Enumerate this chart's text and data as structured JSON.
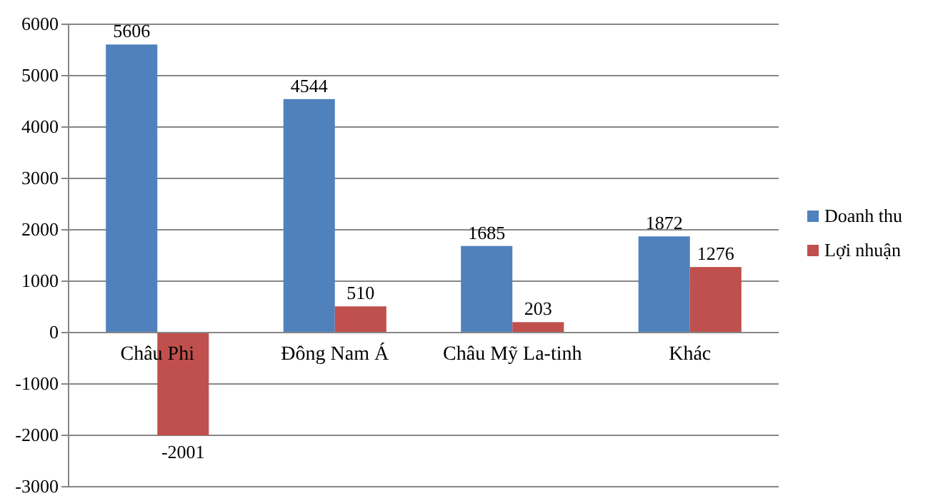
{
  "chart_data": {
    "type": "bar",
    "categories": [
      "Châu Phi",
      "Đông Nam Á",
      "Châu Mỹ La-tinh",
      "Khác"
    ],
    "series": [
      {
        "name": "Doanh thu",
        "color": "#4f81bd",
        "values": [
          5606,
          4544,
          1685,
          1872
        ]
      },
      {
        "name": "Lợi nhuận",
        "color": "#c0504d",
        "values": [
          -2001,
          510,
          203,
          1276
        ]
      }
    ],
    "ylim": [
      -3000,
      6000
    ],
    "yticks": [
      -3000,
      -2000,
      -1000,
      0,
      1000,
      2000,
      3000,
      4000,
      5000,
      6000
    ],
    "grid": "y",
    "legend": "right",
    "data_labels": true
  }
}
